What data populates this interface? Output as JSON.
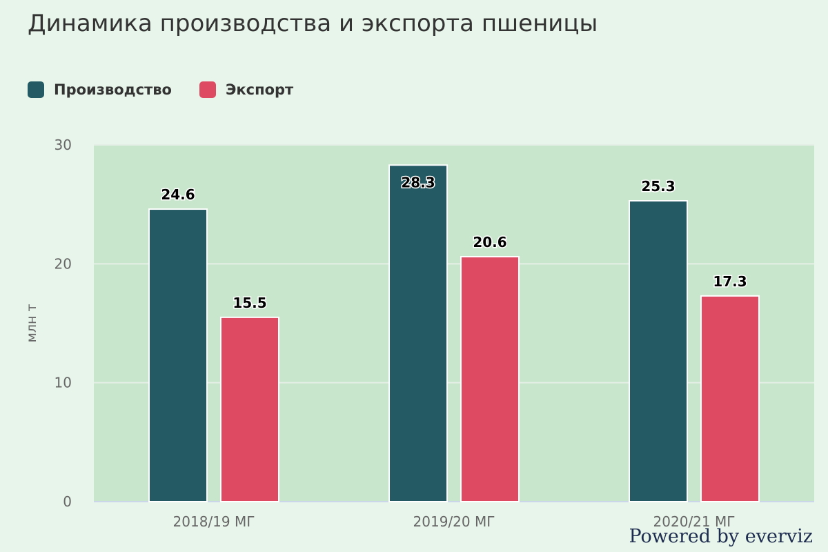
{
  "page": {
    "title": "Динамика производства и экспорта пшеницы",
    "credit": "Powered by everviz"
  },
  "colors": {
    "background": "#e8f5ea",
    "plot_background": "#c8e6cc",
    "series_production": "#235a63",
    "series_export": "#dd4a61",
    "grid": "#e6efe7",
    "axis_text": "#666666"
  },
  "legend": {
    "items": [
      {
        "label": "Производство",
        "color": "#235a63"
      },
      {
        "label": "Экспорт",
        "color": "#dd4a61"
      }
    ]
  },
  "chart_data": {
    "type": "bar",
    "title": "Динамика производства и экспорта пшеницы",
    "xlabel": "",
    "ylabel": "млн т",
    "categories": [
      "2018/19 МГ",
      "2019/20 МГ",
      "2020/21 МГ"
    ],
    "series": [
      {
        "name": "Производство",
        "values": [
          24.6,
          28.3,
          25.3
        ],
        "labels": [
          "24.6",
          "28.3",
          "25.3"
        ]
      },
      {
        "name": "Экспорт",
        "values": [
          15.5,
          20.6,
          17.3
        ],
        "labels": [
          "15.5",
          "20.6",
          "17.3"
        ]
      }
    ],
    "ylim": [
      0,
      30
    ],
    "yticks": [
      0,
      10,
      20,
      30
    ],
    "ytick_labels": [
      "0",
      "10",
      "20",
      "30"
    ],
    "grid": true,
    "legend_position": "top-left",
    "data_labels": true
  }
}
